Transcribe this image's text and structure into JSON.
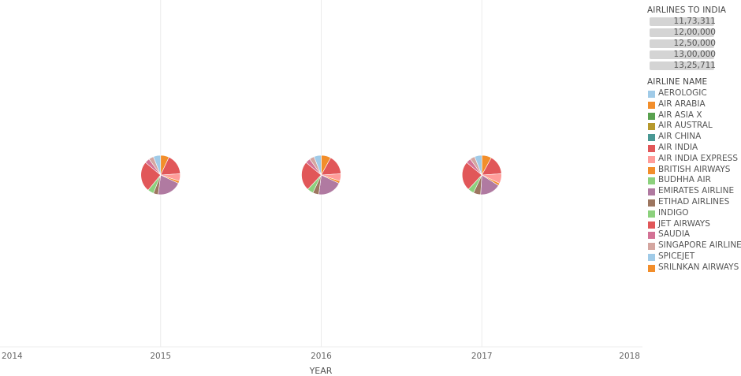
{
  "chart_data": {
    "type": "pie",
    "xlabel": "YEAR",
    "x_ticks": [
      "2014",
      "2015",
      "2016",
      "2017",
      "2018"
    ],
    "xlim": [
      2014,
      2018
    ],
    "grid": true,
    "legend_placement": "right",
    "size_legend": {
      "title": "AIRLINES TO INDIA",
      "values": [
        "11,73,311",
        "12,00,000",
        "12,50,000",
        "13,00,000",
        "13,25,711"
      ]
    },
    "color_legend": {
      "title": "AIRLINE NAME",
      "items": [
        {
          "name": "AEROLOGIC",
          "color": "#a0cbe8"
        },
        {
          "name": "AIR ARABIA",
          "color": "#f28e2b"
        },
        {
          "name": "AIR ASIA X",
          "color": "#59a14f"
        },
        {
          "name": "AIR AUSTRAL",
          "color": "#b6992d"
        },
        {
          "name": "AIR CHINA",
          "color": "#499894"
        },
        {
          "name": "AIR INDIA",
          "color": "#e15759"
        },
        {
          "name": "AIR INDIA EXPRESS",
          "color": "#ff9d9a"
        },
        {
          "name": "BRITISH AIRWAYS",
          "color": "#f28e2b"
        },
        {
          "name": "BUDHHA AIR",
          "color": "#8cd17d"
        },
        {
          "name": "EMIRATES AIRLINE",
          "color": "#b07aa1"
        },
        {
          "name": "ETIHAD AIRLINES",
          "color": "#9d7660"
        },
        {
          "name": "INDIGO",
          "color": "#8cd17d"
        },
        {
          "name": "JET AIRWAYS",
          "color": "#e15759"
        },
        {
          "name": "SAUDIA",
          "color": "#d37295"
        },
        {
          "name": "SINGAPORE AIRLINES",
          "color": "#d4a6a0"
        },
        {
          "name": "SPICEJET",
          "color": "#a0cbe8"
        },
        {
          "name": "SRILNKAN AIRWAYS",
          "color": "#f28e2b"
        }
      ]
    },
    "pies": [
      {
        "year": 2015,
        "slices": [
          {
            "name": "SRILNKAN AIRWAYS",
            "value": 7
          },
          {
            "name": "JET AIRWAYS",
            "value": 17
          },
          {
            "name": "AIR INDIA EXPRESS",
            "value": 6
          },
          {
            "name": "BRITISH AIRWAYS",
            "value": 2
          },
          {
            "name": "EMIRATES AIRLINE",
            "value": 20
          },
          {
            "name": "ETIHAD AIRLINES",
            "value": 4
          },
          {
            "name": "INDIGO",
            "value": 5
          },
          {
            "name": "AIR INDIA",
            "value": 25
          },
          {
            "name": "SAUDIA",
            "value": 4
          },
          {
            "name": "SINGAPORE AIRLINES",
            "value": 4
          },
          {
            "name": "SPICEJET",
            "value": 6
          }
        ]
      },
      {
        "year": 2016,
        "slices": [
          {
            "name": "SRILNKAN AIRWAYS",
            "value": 8
          },
          {
            "name": "JET AIRWAYS",
            "value": 16
          },
          {
            "name": "AIR INDIA EXPRESS",
            "value": 6
          },
          {
            "name": "BRITISH AIRWAYS",
            "value": 2
          },
          {
            "name": "EMIRATES AIRLINE",
            "value": 20
          },
          {
            "name": "ETIHAD AIRLINES",
            "value": 5
          },
          {
            "name": "INDIGO",
            "value": 5
          },
          {
            "name": "AIR INDIA",
            "value": 24
          },
          {
            "name": "SAUDIA",
            "value": 4
          },
          {
            "name": "SINGAPORE AIRLINES",
            "value": 4
          },
          {
            "name": "SPICEJET",
            "value": 6
          }
        ]
      },
      {
        "year": 2017,
        "slices": [
          {
            "name": "SRILNKAN AIRWAYS",
            "value": 8
          },
          {
            "name": "JET AIRWAYS",
            "value": 16
          },
          {
            "name": "AIR INDIA EXPRESS",
            "value": 8
          },
          {
            "name": "BRITISH AIRWAYS",
            "value": 2
          },
          {
            "name": "EMIRATES AIRLINE",
            "value": 17
          },
          {
            "name": "ETIHAD AIRLINES",
            "value": 6
          },
          {
            "name": "INDIGO",
            "value": 5
          },
          {
            "name": "AIR INDIA",
            "value": 24
          },
          {
            "name": "SAUDIA",
            "value": 4
          },
          {
            "name": "SINGAPORE AIRLINES",
            "value": 4
          },
          {
            "name": "SPICEJET",
            "value": 6
          }
        ]
      }
    ]
  }
}
